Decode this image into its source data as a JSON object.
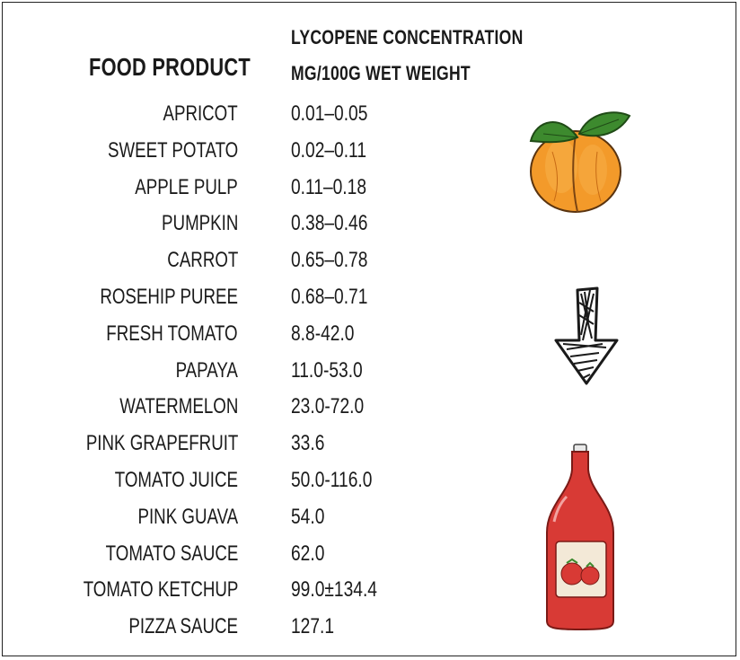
{
  "header": {
    "food_product": "FOOD PRODUCT",
    "concentration_line1": "LYCOPENE CONCENTRATION",
    "concentration_line2": "MG/100G WET WEIGHT"
  },
  "rows": [
    {
      "food": "APRICOT",
      "concentration": "0.01–0.05"
    },
    {
      "food": "SWEET POTATO",
      "concentration": "0.02–0.11"
    },
    {
      "food": "APPLE PULP",
      "concentration": "0.11–0.18"
    },
    {
      "food": "PUMPKIN",
      "concentration": "0.38–0.46"
    },
    {
      "food": "CARROT",
      "concentration": "0.65–0.78"
    },
    {
      "food": "ROSEHIP PUREE",
      "concentration": "0.68–0.71"
    },
    {
      "food": "FRESH TOMATO",
      "concentration": "8.8-42.0"
    },
    {
      "food": "PAPAYA",
      "concentration": "11.0-53.0"
    },
    {
      "food": "WATERMELON",
      "concentration": "23.0-72.0"
    },
    {
      "food": "PINK GRAPEFRUIT",
      "concentration": "33.6"
    },
    {
      "food": "TOMATO JUICE",
      "concentration": "50.0-116.0"
    },
    {
      "food": "PINK GUAVA",
      "concentration": "54.0"
    },
    {
      "food": "TOMATO SAUCE",
      "concentration": "62.0"
    },
    {
      "food": "TOMATO KETCHUP",
      "concentration": "99.0±134.4"
    },
    {
      "food": "PIZZA SAUCE",
      "concentration": "127.1"
    }
  ],
  "illustrations": {
    "top": "apricot-icon",
    "middle": "down-arrow-icon",
    "bottom": "ketchup-bottle-icon"
  },
  "colors": {
    "apricot": "#f08a1e",
    "leaf": "#3d8a2e",
    "ketchup": "#d83a35",
    "arrow": "#1a1a1a"
  }
}
